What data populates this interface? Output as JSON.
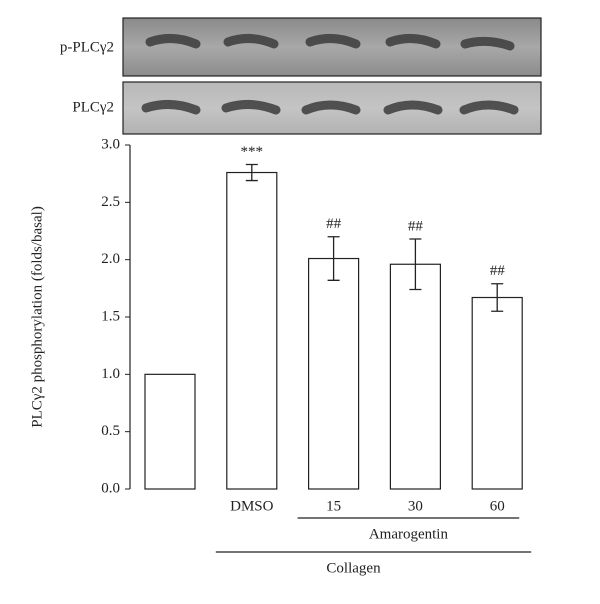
{
  "chart_data": {
    "type": "bar",
    "blot_labels": [
      "p-PLCγ2",
      "PLCγ2"
    ],
    "ylabel": "PLCγ2 phosphorylation (folds/basal)",
    "categories": [
      null,
      "DMSO",
      "15",
      "30",
      "60"
    ],
    "values": [
      1.0,
      2.76,
      2.01,
      1.96,
      1.67
    ],
    "errors": [
      null,
      0.07,
      0.19,
      0.22,
      0.12
    ],
    "annotations": [
      null,
      "***",
      "##",
      "##",
      "##"
    ],
    "groups": [
      {
        "label": "Amarogentin",
        "from": 2,
        "to": 4
      },
      {
        "label": "Collagen",
        "from": 1,
        "to": 4
      }
    ],
    "color": "#ffffff",
    "ylim": [
      0,
      3.0
    ],
    "yticks": [
      {
        "value": 0,
        "label": "0.0"
      },
      {
        "value": 0.5,
        "label": "0.5"
      },
      {
        "value": 1,
        "label": "1.0"
      },
      {
        "value": 1.5,
        "label": "1.5"
      },
      {
        "value": 2,
        "label": "2.0"
      },
      {
        "value": 2.5,
        "label": "2.5"
      },
      {
        "value": 3,
        "label": "3.0"
      }
    ]
  }
}
